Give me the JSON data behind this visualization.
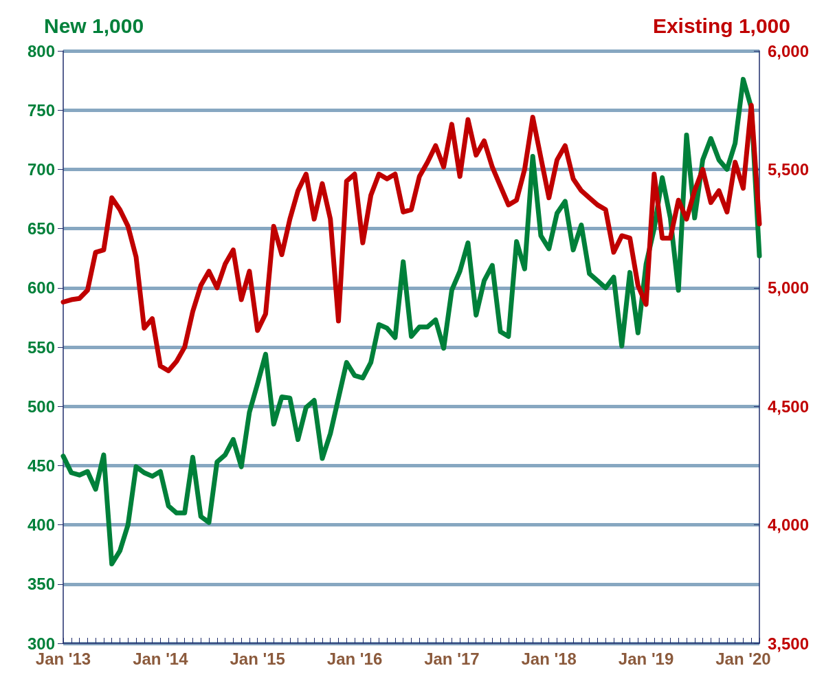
{
  "chart_data": {
    "type": "line",
    "ylabel": "New 1,000",
    "y2label": "Existing 1,000",
    "categories": [
      "Jan '13",
      null,
      null,
      null,
      null,
      null,
      null,
      null,
      null,
      null,
      null,
      null,
      "Jan '14",
      null,
      null,
      null,
      null,
      null,
      null,
      null,
      null,
      null,
      null,
      null,
      "Jan '15",
      null,
      null,
      null,
      null,
      null,
      null,
      null,
      null,
      null,
      null,
      null,
      "Jan '16",
      null,
      null,
      null,
      null,
      null,
      null,
      null,
      null,
      null,
      null,
      null,
      "Jan '17",
      null,
      null,
      null,
      null,
      null,
      null,
      null,
      null,
      null,
      null,
      null,
      "Jan '18",
      null,
      null,
      null,
      null,
      null,
      null,
      null,
      null,
      null,
      null,
      null,
      "Jan '19",
      null,
      null,
      null,
      null,
      null,
      null,
      null,
      null,
      null,
      null,
      null,
      "Jan '20",
      null,
      null
    ],
    "series": [
      {
        "color": "#00803a",
        "axis": "y",
        "values": [
          458,
          444,
          442,
          445,
          430,
          459,
          367,
          378,
          400,
          449,
          444,
          441,
          445,
          416,
          410,
          410,
          457,
          407,
          402,
          453,
          459,
          472,
          449,
          495,
          519,
          544,
          485,
          508,
          507,
          472,
          499,
          505,
          456,
          477,
          507,
          537,
          526,
          524,
          537,
          569,
          566,
          558,
          622,
          559,
          567,
          567,
          573,
          549,
          598,
          614,
          638,
          577,
          606,
          619,
          563,
          559,
          639,
          616,
          711,
          644,
          633,
          663,
          673,
          632,
          653,
          612,
          606,
          600,
          609,
          551,
          613,
          562,
          620,
          650,
          693,
          659,
          598,
          729,
          659,
          708,
          726,
          708,
          700,
          722,
          776,
          752,
          627
        ]
      },
      {
        "color": "#c00000",
        "axis": "y2",
        "values": [
          4940,
          4950,
          4955,
          4990,
          5150,
          5160,
          5380,
          5330,
          5260,
          5130,
          4830,
          4870,
          4670,
          4650,
          4690,
          4750,
          4900,
          5010,
          5070,
          5000,
          5100,
          5160,
          4950,
          5070,
          4820,
          4890,
          5260,
          5140,
          5290,
          5410,
          5480,
          5290,
          5440,
          5290,
          4860,
          5450,
          5480,
          5190,
          5390,
          5480,
          5460,
          5480,
          5320,
          5330,
          5470,
          5530,
          5600,
          5510,
          5690,
          5470,
          5710,
          5560,
          5620,
          5510,
          5430,
          5350,
          5370,
          5500,
          5720,
          5550,
          5380,
          5540,
          5600,
          5460,
          5410,
          5380,
          5350,
          5330,
          5150,
          5220,
          5210,
          5010,
          4930,
          5480,
          5210,
          5210,
          5370,
          5290,
          5410,
          5500,
          5360,
          5410,
          5320,
          5530,
          5420,
          5770,
          5270
        ]
      }
    ],
    "ylim": [
      300,
      800
    ],
    "yticks": [
      300,
      350,
      400,
      450,
      500,
      550,
      600,
      650,
      700,
      750,
      800
    ],
    "y2lim": [
      3500,
      6000
    ],
    "y2ticks": [
      {
        "value": 3500,
        "label": "3,500"
      },
      {
        "value": 4000,
        "label": "4,000"
      },
      {
        "value": 4500,
        "label": "4,500"
      },
      {
        "value": 5000,
        "label": "5,000"
      },
      {
        "value": 5500,
        "label": "5,500"
      },
      {
        "value": 6000,
        "label": "6,000"
      }
    ],
    "grid": "y",
    "marker": "none",
    "line_style": "solid"
  }
}
